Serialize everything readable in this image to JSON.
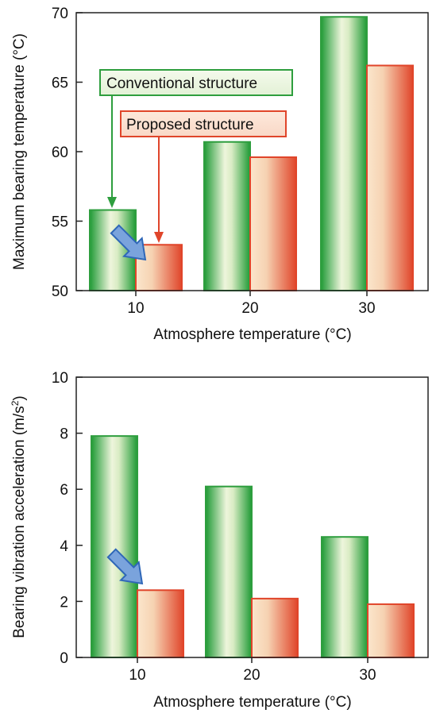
{
  "chart_data": [
    {
      "type": "bar",
      "title": "",
      "categories": [
        "10",
        "20",
        "30"
      ],
      "series": [
        {
          "name": "Conventional structure",
          "values": [
            55.8,
            60.7,
            69.7
          ]
        },
        {
          "name": "Proposed structure",
          "values": [
            53.3,
            59.6,
            66.2
          ]
        }
      ],
      "ylim": [
        50,
        70
      ],
      "yticks": [
        "50",
        "55",
        "60",
        "65",
        "70"
      ],
      "xlabel": "Atmosphere temperature (°C)",
      "ylabel": "Maximum bearing temperature (°C)",
      "legend": "callouts inside plot, top-left",
      "grid": false,
      "colors": {
        "conventional": "#2e9e3e",
        "proposed": "#e0452a",
        "arrow": "#6e9bd6"
      }
    },
    {
      "type": "bar",
      "title": "",
      "categories": [
        "10",
        "20",
        "30"
      ],
      "series": [
        {
          "name": "Conventional structure",
          "values": [
            7.9,
            6.1,
            4.3
          ]
        },
        {
          "name": "Proposed structure",
          "values": [
            2.4,
            2.1,
            1.9
          ]
        }
      ],
      "ylim": [
        0,
        10
      ],
      "yticks": [
        "0",
        "2",
        "4",
        "6",
        "8",
        "10"
      ],
      "xlabel": "Atmosphere temperature (°C)",
      "ylabel": "Bearing vibration acceleration (m/s",
      "ylabel_sup": "2",
      "ylabel_tail": ")",
      "legend": "none",
      "grid": false,
      "colors": {
        "conventional": "#2e9e3e",
        "proposed": "#e0452a",
        "arrow": "#6e9bd6"
      }
    }
  ]
}
